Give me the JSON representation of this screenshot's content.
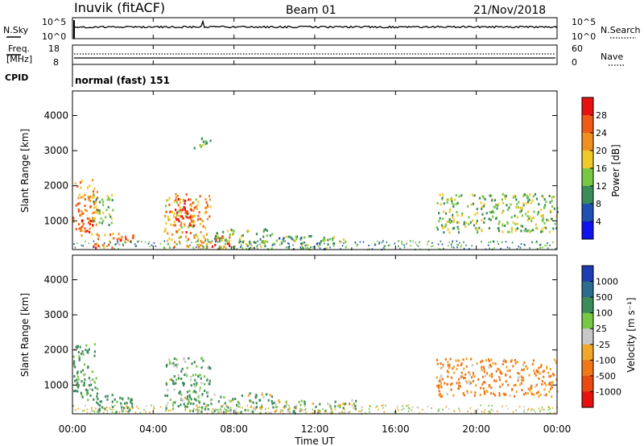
{
  "header": {
    "station": "Inuvik (fitACF)",
    "beam": "Beam 01",
    "date": "21/Nov/2018"
  },
  "nsky_panel": {
    "left_label": "N.Sky",
    "right_label": "N.Search",
    "left_ticks": [
      "10^5",
      "10^0"
    ],
    "right_ticks": [
      "10^5",
      "10^0"
    ]
  },
  "freq_panel": {
    "left_label_1": "Freq.",
    "left_label_2": "[MHz]",
    "right_label": "Nave",
    "left_ticks": [
      "18",
      "8"
    ],
    "right_ticks": [
      "60",
      "0"
    ],
    "cpid_label": "CPID",
    "cpid_text": "normal (fast) 151"
  },
  "power_panel": {
    "ylabel": "Slant Range [km]",
    "yticks": [
      "4000",
      "3000",
      "2000",
      "1000"
    ],
    "colorbar_label": "Power [dB]",
    "colorbar_ticks": [
      "28",
      "24",
      "20",
      "16",
      "12",
      "8",
      "4"
    ],
    "colors": [
      "#1010f0",
      "#2050b0",
      "#3c8c5a",
      "#78c846",
      "#f0c828",
      "#f09020",
      "#f05a14",
      "#e81010"
    ]
  },
  "velocity_panel": {
    "ylabel": "Slant Range [km]",
    "yticks": [
      "4000",
      "3000",
      "2000",
      "1000"
    ],
    "colorbar_label": "Velocity [m s⁻¹]",
    "colorbar_ticks": [
      "1000",
      "500",
      "100",
      "25",
      "-25",
      "-100",
      "-500",
      "-1000"
    ],
    "colors": [
      "#1e3cb4",
      "#2c6c8c",
      "#3c8c5a",
      "#78c846",
      "#c8c8c8",
      "#f0a82a",
      "#f07818",
      "#e84a10",
      "#e81010"
    ]
  },
  "xaxis": {
    "ticks": [
      "00:00",
      "04:00",
      "08:00",
      "12:00",
      "16:00",
      "20:00",
      "00:00"
    ],
    "label": "Time UT"
  },
  "chart_data": {
    "type": "heatmap",
    "x_range_hours": [
      0,
      24
    ],
    "y_range_km": [
      180,
      4700
    ],
    "power_echo_regions": [
      {
        "t_start": 0.0,
        "t_end": 1.2,
        "r_min": 600,
        "r_max": 2200,
        "power_db": 22
      },
      {
        "t_start": 0.2,
        "t_end": 1.0,
        "r_min": 700,
        "r_max": 1100,
        "power_db": 28
      },
      {
        "t_start": 1.0,
        "t_end": 3.0,
        "r_min": 250,
        "r_max": 700,
        "power_db": 24
      },
      {
        "t_start": 1.0,
        "t_end": 2.0,
        "r_min": 900,
        "r_max": 1800,
        "power_db": 14
      },
      {
        "t_start": 4.5,
        "t_end": 6.8,
        "r_min": 250,
        "r_max": 1800,
        "power_db": 20
      },
      {
        "t_start": 5.0,
        "t_end": 6.0,
        "r_min": 700,
        "r_max": 1700,
        "power_db": 28
      },
      {
        "t_start": 6.8,
        "t_end": 7.8,
        "r_min": 200,
        "r_max": 600,
        "power_db": 28
      },
      {
        "t_start": 7.0,
        "t_end": 10.0,
        "r_min": 220,
        "r_max": 800,
        "power_db": 14
      },
      {
        "t_start": 10.0,
        "t_end": 13.5,
        "r_min": 220,
        "r_max": 600,
        "power_db": 12
      },
      {
        "t_start": 6.0,
        "t_end": 7.0,
        "r_min": 3100,
        "r_max": 3400,
        "power_db": 12
      },
      {
        "t_start": 18.0,
        "t_end": 24.0,
        "r_min": 700,
        "r_max": 1800,
        "power_db": 14
      }
    ],
    "velocity_echo_regions": [
      {
        "t_start": 0.0,
        "t_end": 1.2,
        "r_min": 600,
        "r_max": 2200,
        "velocity": 150
      },
      {
        "t_start": 1.0,
        "t_end": 3.0,
        "r_min": 250,
        "r_max": 800,
        "velocity": 200
      },
      {
        "t_start": 4.5,
        "t_end": 6.8,
        "r_min": 250,
        "r_max": 1800,
        "velocity": 120
      },
      {
        "t_start": 6.8,
        "t_end": 10.0,
        "r_min": 220,
        "r_max": 800,
        "velocity": 80
      },
      {
        "t_start": 10.0,
        "t_end": 14.0,
        "r_min": 220,
        "r_max": 600,
        "velocity": 40
      },
      {
        "t_start": 18.0,
        "t_end": 24.0,
        "r_min": 700,
        "r_max": 1800,
        "velocity": -150
      }
    ]
  }
}
